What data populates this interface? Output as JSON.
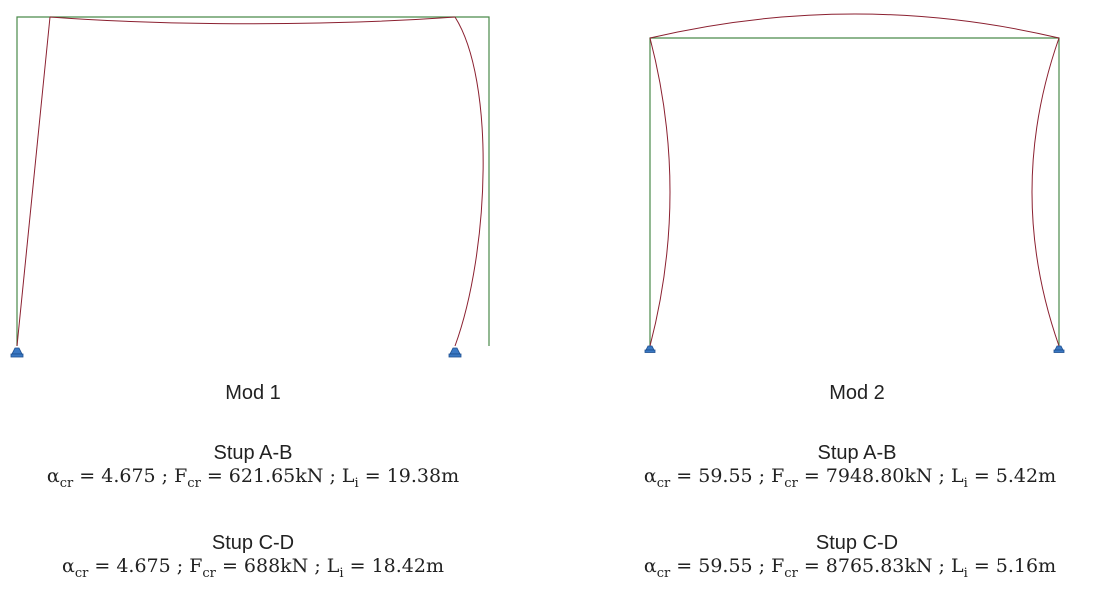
{
  "colors": {
    "undeformed": "#4a8a4a",
    "deformed": "#8b2030",
    "support": "#3a78c3"
  },
  "icons": {
    "support": "pinned-support-icon"
  },
  "modes": [
    {
      "title": "Mod 1",
      "columns": [
        {
          "label": "Stup A-B",
          "alpha_sym": "α",
          "alpha_sub": "cr",
          "alpha_val": " = 4.675 ; ",
          "F_sym": "F",
          "F_sub": "cr",
          "F_val": " = 621.65kN ; ",
          "L_sym": "L",
          "L_sub": "i",
          "L_val": " = 19.38m"
        },
        {
          "label": "Stup C-D",
          "alpha_sym": "α",
          "alpha_sub": "cr",
          "alpha_val": " = 4.675 ; ",
          "F_sym": "F",
          "F_sub": "cr",
          "F_val": " = 688kN ; ",
          "L_sym": "L",
          "L_sub": "i",
          "L_val": " = 18.42m"
        }
      ]
    },
    {
      "title": "Mod 2",
      "columns": [
        {
          "label": "Stup A-B",
          "alpha_sym": "α",
          "alpha_sub": "cr",
          "alpha_val": " = 59.55 ; ",
          "F_sym": "F",
          "F_sub": "cr",
          "F_val": " = 7948.80kN ; ",
          "L_sym": "L",
          "L_sub": "i",
          "L_val": " = 5.42m"
        },
        {
          "label": "Stup C-D",
          "alpha_sym": "α",
          "alpha_sub": "cr",
          "alpha_val": " = 59.55 ; ",
          "F_sym": "F",
          "F_sub": "cr",
          "F_val": " = 8765.83kN ; ",
          "L_sym": "L",
          "L_sub": "i",
          "L_val": " = 5.16m"
        }
      ]
    }
  ]
}
